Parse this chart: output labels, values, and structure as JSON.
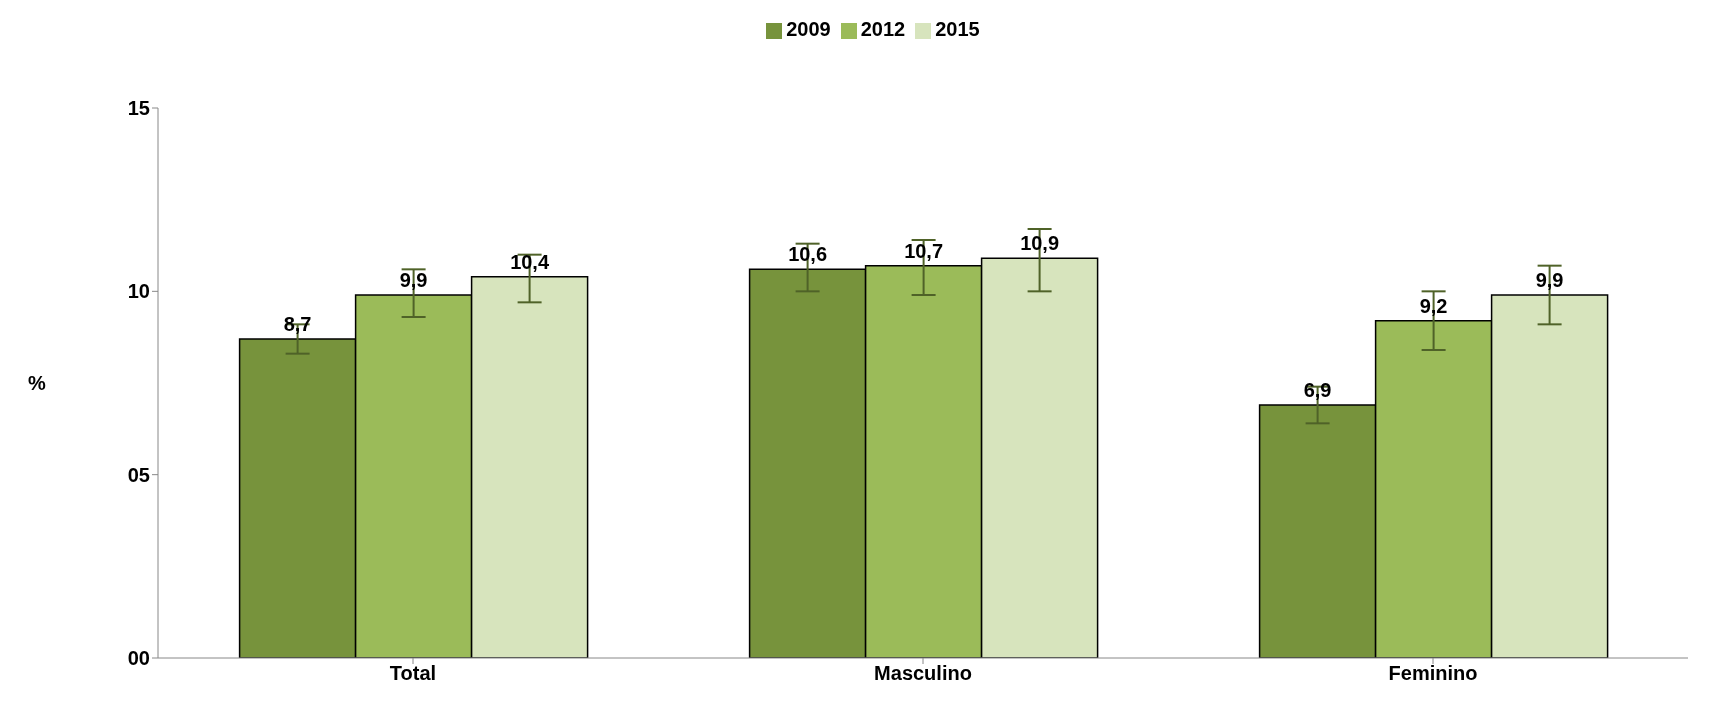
{
  "chart_data": {
    "type": "bar",
    "ylabel": "%",
    "categories": [
      "Total",
      "Masculino",
      "Feminino"
    ],
    "series": [
      {
        "name": "2009",
        "color": "#77933c",
        "values": [
          8.7,
          10.6,
          6.9
        ],
        "value_labels": [
          "8,7",
          "10,6",
          "6,9"
        ],
        "errors": [
          [
            8.3,
            9.1
          ],
          [
            10.0,
            11.3
          ],
          [
            6.4,
            7.4
          ]
        ]
      },
      {
        "name": "2012",
        "color": "#9bbb59",
        "values": [
          9.9,
          10.7,
          9.2
        ],
        "value_labels": [
          "9,9",
          "10,7",
          "9,2"
        ],
        "errors": [
          [
            9.3,
            10.6
          ],
          [
            9.9,
            11.4
          ],
          [
            8.4,
            10.0
          ]
        ]
      },
      {
        "name": "2015",
        "color": "#d7e4bd",
        "values": [
          10.4,
          10.9,
          9.9
        ],
        "value_labels": [
          "10,4",
          "10,9",
          "9,9"
        ],
        "errors": [
          [
            9.7,
            11.0
          ],
          [
            10.0,
            11.7
          ],
          [
            9.1,
            10.7
          ]
        ]
      }
    ],
    "ylim": [
      0,
      15
    ],
    "yticks": [
      {
        "value": 0,
        "label": "00"
      },
      {
        "value": 5,
        "label": "05"
      },
      10,
      15
    ],
    "grid": false,
    "legend": "top"
  }
}
